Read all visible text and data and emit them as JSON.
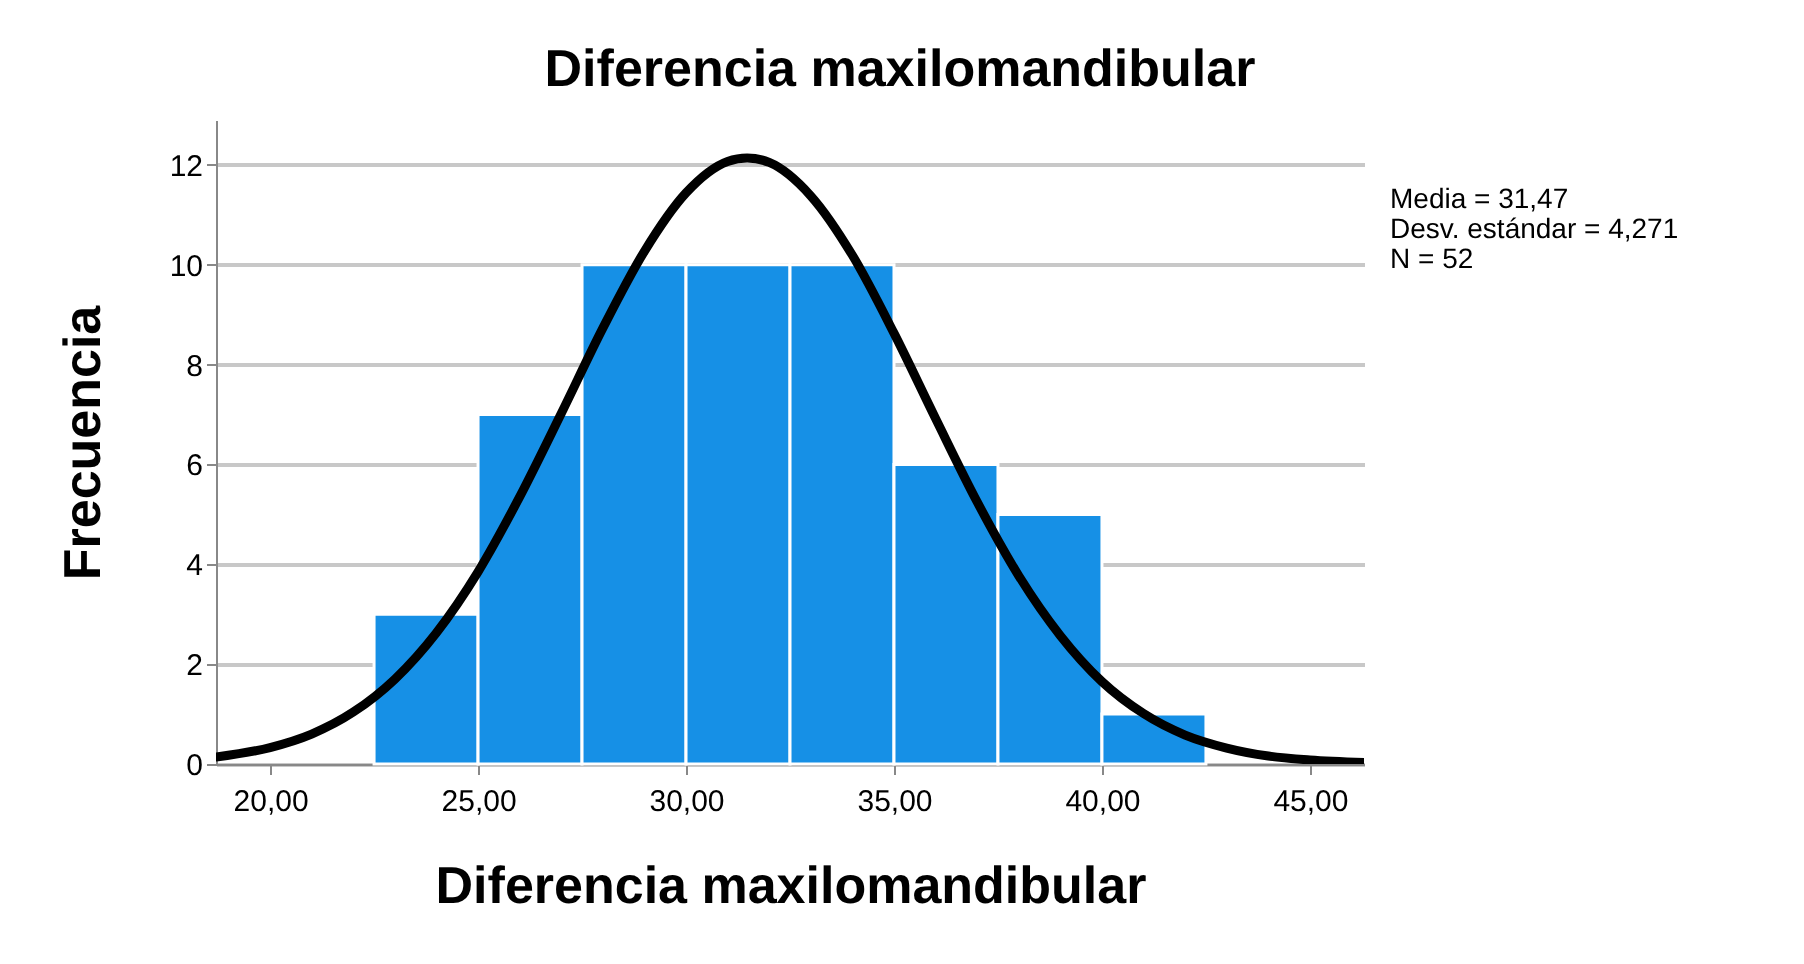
{
  "chart_data": {
    "type": "histogram",
    "title": "Diferencia maxilomandibular",
    "xlabel": "Diferencia maxilomandibular",
    "ylabel": "Frecuencia",
    "bins": [
      22.5,
      25,
      27.5,
      30,
      32.5,
      35,
      37.5,
      40,
      42.5
    ],
    "values": [
      3,
      7,
      10,
      10,
      10,
      6,
      5,
      1
    ],
    "color": "#1690e6",
    "series": [
      {
        "type": "line",
        "color": "#000000",
        "x": [
          18.7,
          20,
          21,
          22,
          23,
          24,
          25,
          26,
          27,
          28,
          29,
          30,
          31,
          31.47,
          32,
          33,
          34,
          35,
          36,
          37,
          38,
          39,
          40,
          41,
          42,
          43,
          44,
          45,
          46.3
        ],
        "values": [
          0.14,
          0.33,
          0.6,
          1.04,
          1.7,
          2.63,
          3.85,
          5.35,
          7.02,
          8.73,
          10.27,
          11.44,
          12.07,
          12.14,
          12.05,
          11.38,
          10.19,
          8.63,
          6.92,
          5.25,
          3.77,
          2.57,
          1.65,
          1.01,
          0.58,
          0.32,
          0.16,
          0.08,
          0.03
        ]
      }
    ],
    "xlim": [
      18.7,
      46.3
    ],
    "xticks": [
      {
        "value": 20,
        "label": "20,00"
      },
      {
        "value": 25,
        "label": "25,00"
      },
      {
        "value": 30,
        "label": "30,00"
      },
      {
        "value": 35,
        "label": "35,00"
      },
      {
        "value": 40,
        "label": "40,00"
      },
      {
        "value": 45,
        "label": "45,00"
      }
    ],
    "ylim": [
      0,
      12.9
    ],
    "yticks": [
      0,
      2,
      4,
      6,
      8,
      10,
      12
    ],
    "grid": "y",
    "annotations": [
      "Media = 31,47",
      "Desv. estándar = 4,271",
      "N = 52"
    ]
  }
}
